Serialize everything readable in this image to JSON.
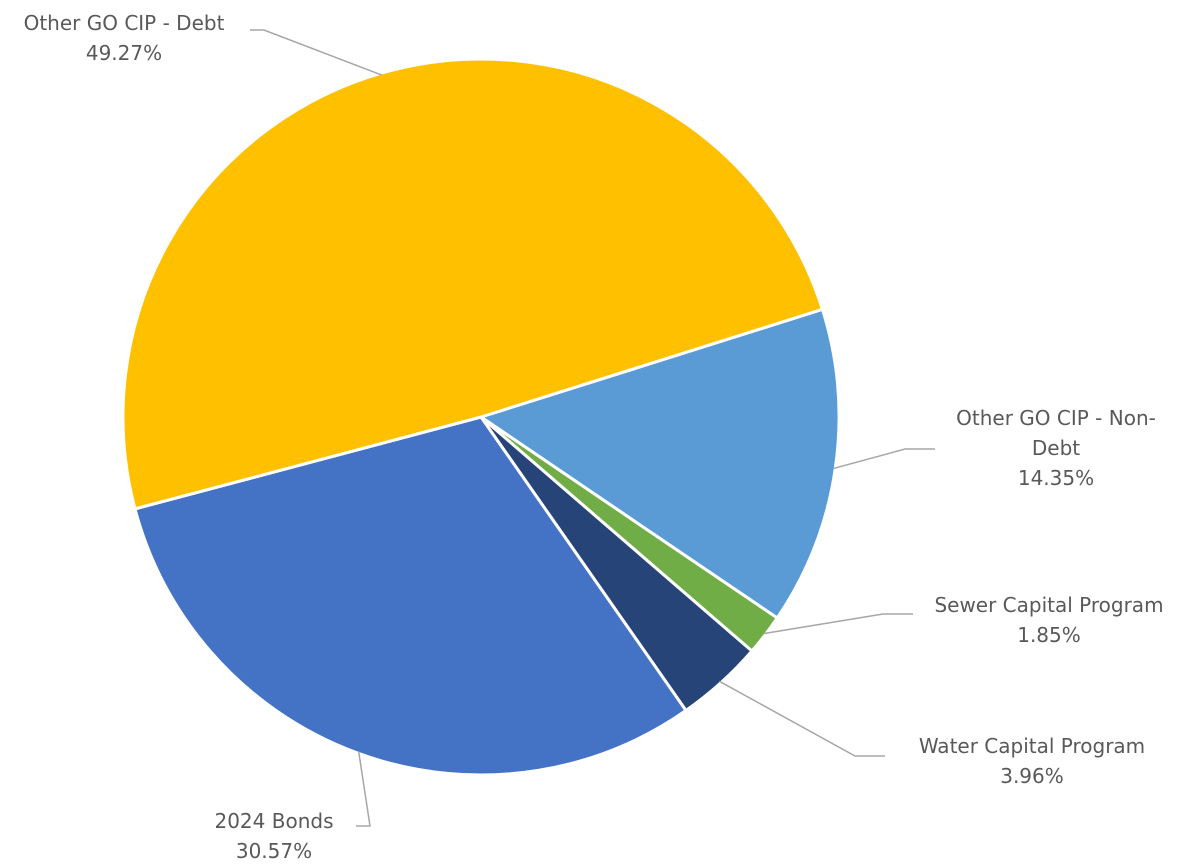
{
  "chart_data": {
    "type": "pie",
    "title": "",
    "slices": [
      {
        "label": "Other GO CIP - Non-Debt",
        "label_lines": [
          "Other GO CIP - Non-",
          "Debt"
        ],
        "value_label": "14.35%",
        "value": 14.35,
        "color": "#5B9BD5"
      },
      {
        "label": "Sewer Capital Program",
        "label_lines": [
          "Sewer Capital Program"
        ],
        "value_label": "1.85%",
        "value": 1.85,
        "color": "#70AD47"
      },
      {
        "label": "Water Capital Program",
        "label_lines": [
          "Water Capital Program"
        ],
        "value_label": "3.96%",
        "value": 3.96,
        "color": "#264478"
      },
      {
        "label": "2024 Bonds",
        "label_lines": [
          "2024 Bonds"
        ],
        "value_label": "30.57%",
        "value": 30.57,
        "color": "#4472C4"
      },
      {
        "label": "Other GO CIP - Debt",
        "label_lines": [
          "Other GO CIP - Debt"
        ],
        "value_label": "49.27%",
        "value": 49.27,
        "color": "#FFC000"
      }
    ],
    "legend": "none",
    "data_labels": "outside-with-leader-lines",
    "leader_line_color": "#A6A6A6",
    "slice_border_color": "#FFFFFF"
  }
}
